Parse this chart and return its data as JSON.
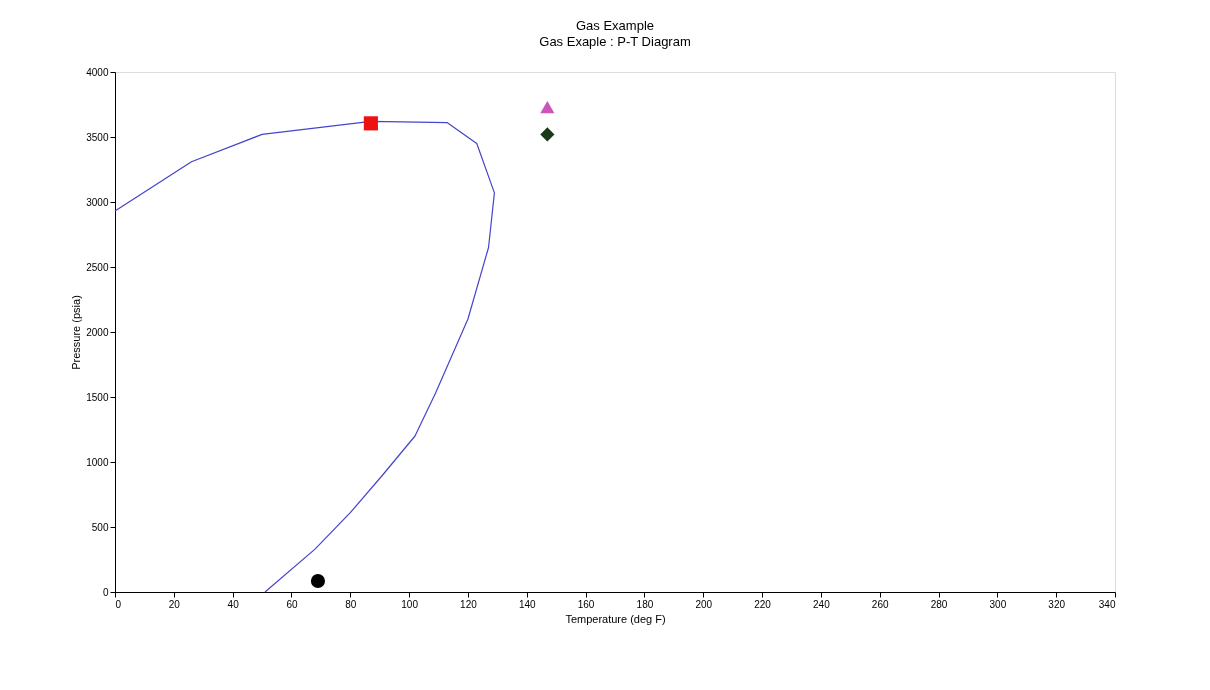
{
  "chart_data": {
    "type": "line",
    "title": "Gas Example",
    "subtitle": "Gas Exaple : P-T Diagram",
    "xlabel": "Temperature (deg F)",
    "ylabel": "Pressure (psia)",
    "xlim": [
      0,
      340
    ],
    "xticks": [
      0,
      20,
      40,
      60,
      80,
      100,
      120,
      140,
      160,
      180,
      200,
      220,
      240,
      260,
      280,
      300,
      320,
      340
    ],
    "ylim": [
      0,
      4000
    ],
    "yticks": [
      0,
      500,
      1000,
      1500,
      2000,
      2500,
      3000,
      3500,
      4000
    ],
    "grid": false,
    "series": [
      {
        "marker": "none",
        "color": "#4444cc",
        "x": [
          0,
          26,
          50,
          87,
          113,
          123,
          129,
          127,
          120,
          109,
          102,
          91,
          80,
          68,
          51
        ],
        "values": [
          2930,
          3310,
          3520,
          3620,
          3610,
          3450,
          3070,
          2650,
          2100,
          1530,
          1200,
          900,
          610,
          330,
          0
        ]
      },
      {
        "type": "scatter",
        "marker": "square",
        "color": "#ee1111",
        "x": [
          87
        ],
        "values": [
          3605
        ]
      },
      {
        "type": "scatter",
        "marker": "triangle",
        "color": "#cc55bb",
        "x": [
          147
        ],
        "values": [
          3730
        ]
      },
      {
        "type": "scatter",
        "marker": "diamond",
        "color": "#1a3a1a",
        "x": [
          147
        ],
        "values": [
          3520
        ]
      },
      {
        "type": "scatter",
        "marker": "circle",
        "color": "#000000",
        "x": [
          69
        ],
        "values": [
          85
        ]
      }
    ]
  }
}
